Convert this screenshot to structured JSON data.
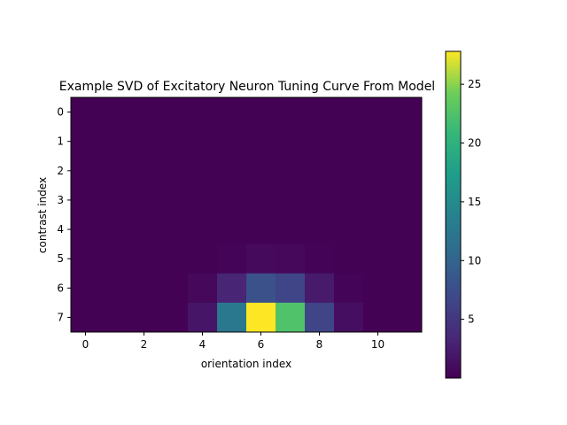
{
  "chart_data": {
    "type": "heatmap",
    "title": "Example SVD of Excitatory Neuron Tuning Curve From Model",
    "xlabel": "orientation index",
    "ylabel": "contrast index",
    "x_ticks": [
      "0",
      "2",
      "4",
      "6",
      "8",
      "10"
    ],
    "y_ticks": [
      "0",
      "1",
      "2",
      "3",
      "4",
      "5",
      "6",
      "7"
    ],
    "colormap": "viridis",
    "colorbar": {
      "vmin": 0,
      "vmax": 27.8,
      "ticks": [
        "5",
        "10",
        "15",
        "20",
        "25"
      ],
      "placement": "right"
    },
    "n_rows": 8,
    "n_cols": 12,
    "values": [
      [
        0.05,
        0.05,
        0.05,
        0.05,
        0.05,
        0.05,
        0.05,
        0.05,
        0.05,
        0.05,
        0.05,
        0.05
      ],
      [
        0.05,
        0.05,
        0.05,
        0.05,
        0.05,
        0.05,
        0.05,
        0.05,
        0.05,
        0.05,
        0.05,
        0.05
      ],
      [
        0.05,
        0.05,
        0.05,
        0.05,
        0.05,
        0.05,
        0.05,
        0.05,
        0.05,
        0.05,
        0.05,
        0.05
      ],
      [
        0.05,
        0.05,
        0.05,
        0.05,
        0.05,
        0.05,
        0.05,
        0.05,
        0.05,
        0.05,
        0.05,
        0.05
      ],
      [
        0.05,
        0.05,
        0.05,
        0.05,
        0.05,
        0.05,
        0.05,
        0.05,
        0.05,
        0.05,
        0.05,
        0.05
      ],
      [
        0.05,
        0.05,
        0.05,
        0.05,
        0.05,
        0.3,
        0.8,
        0.6,
        0.2,
        0.05,
        0.05,
        0.05
      ],
      [
        0.05,
        0.05,
        0.05,
        0.05,
        0.6,
        3.2,
        7.8,
        6.5,
        2.2,
        0.3,
        0.05,
        0.05
      ],
      [
        0.05,
        0.05,
        0.05,
        0.05,
        1.8,
        12.5,
        27.8,
        22.5,
        6.5,
        1.2,
        0.05,
        0.05
      ]
    ]
  }
}
